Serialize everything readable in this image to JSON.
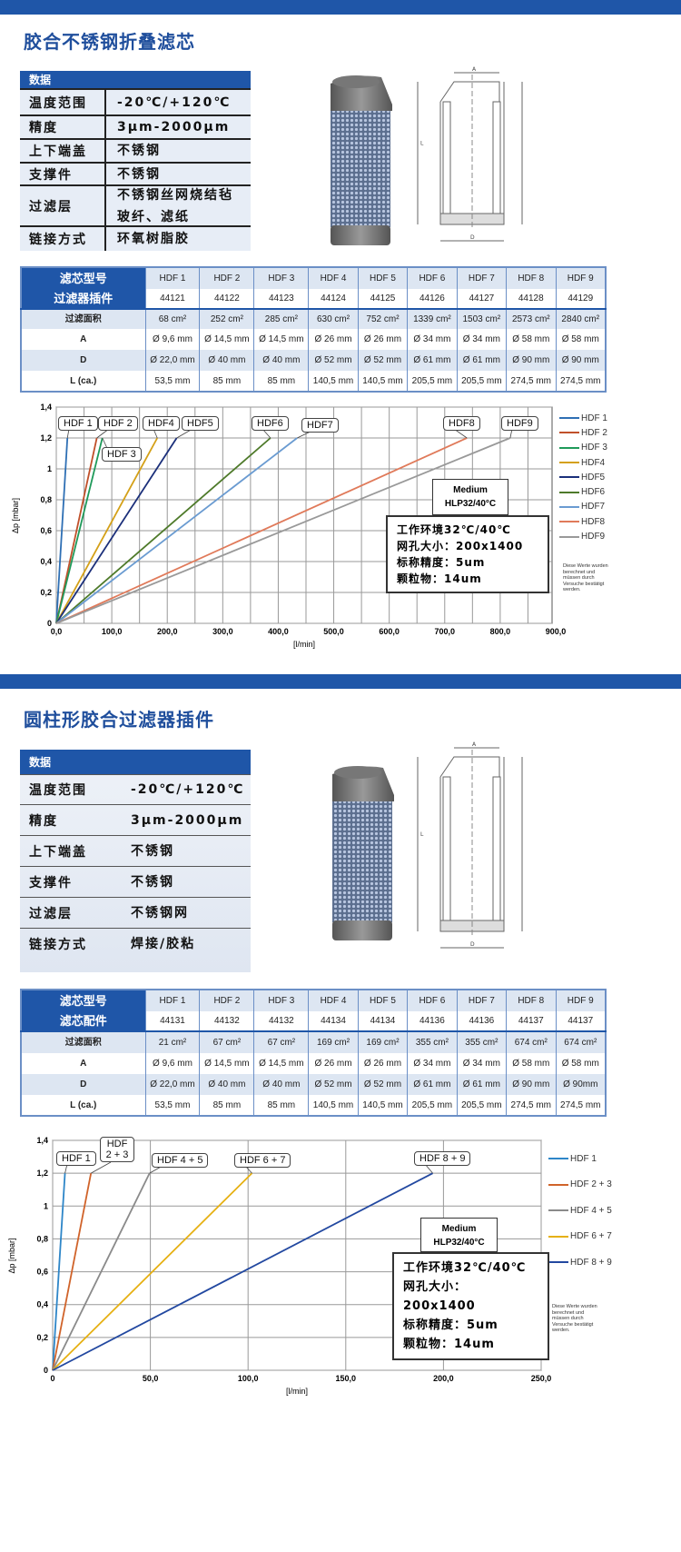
{
  "colors": {
    "brand": "#1f56a8"
  },
  "section1": {
    "title": "胶合不锈钢折叠滤芯",
    "spec": {
      "header": "数据",
      "rows": [
        {
          "k": "温度范围",
          "v": "-20℃/+120℃"
        },
        {
          "k": "精度",
          "v": "3µm-2000µm"
        },
        {
          "k": "上下端盖",
          "v": "不锈钢"
        },
        {
          "k": "支撑件",
          "v": "不锈钢"
        },
        {
          "k": "过滤层",
          "v": "不锈钢丝网烧结毡\n玻纤、滤纸"
        },
        {
          "k": "链接方式",
          "v": "环氧树脂胶"
        }
      ]
    },
    "drawing_labels": {
      "a": "A",
      "l": "L",
      "d": "D"
    },
    "table": {
      "rows": [
        {
          "label": "滤芯型号",
          "cells": [
            "HDF 1",
            "HDF 2",
            "HDF 3",
            "HDF 4",
            "HDF 5",
            "HDF 6",
            "HDF 7",
            "HDF 8",
            "HDF 9"
          ]
        },
        {
          "label": "过滤器插件",
          "cells": [
            "44121",
            "44122",
            "44123",
            "44124",
            "44125",
            "44126",
            "44127",
            "44128",
            "44129"
          ]
        },
        {
          "label": "过滤面积",
          "cells": [
            "68 cm²",
            "252 cm²",
            "285 cm²",
            "630 cm²",
            "752 cm²",
            "1339 cm²",
            "1503 cm²",
            "2573 cm²",
            "2840 cm²"
          ]
        },
        {
          "label": "A",
          "cells": [
            "Ø 9,6 mm",
            "Ø 14,5 mm",
            "Ø 14,5 mm",
            "Ø 26 mm",
            "Ø 26 mm",
            "Ø 34 mm",
            "Ø 34 mm",
            "Ø 58 mm",
            "Ø 58 mm"
          ]
        },
        {
          "label": "D",
          "cells": [
            "Ø 22,0 mm",
            "Ø 40 mm",
            "Ø 40 mm",
            "Ø 52 mm",
            "Ø 52 mm",
            "Ø 61 mm",
            "Ø 61 mm",
            "Ø 90 mm",
            "Ø 90 mm"
          ]
        },
        {
          "label": "L (ca.)",
          "cells": [
            "53,5 mm",
            "85 mm",
            "85 mm",
            "140,5 mm",
            "140,5 mm",
            "205,5 mm",
            "205,5 mm",
            "274,5 mm",
            "274,5 mm"
          ]
        }
      ]
    },
    "medium": {
      "line1": "Medium",
      "line2": "HLP32/40°C"
    },
    "info": [
      "工作环境32℃/40℃",
      "网孔大小：200x1400",
      "标称精度：5um",
      "颗粒物：14um"
    ],
    "note": "Diese Werte wurden berechnet und müssen durch Versuche bestätigt werden."
  },
  "section2": {
    "title": "圆柱形胶合过滤器插件",
    "spec": {
      "header": "数据",
      "rows": [
        {
          "k": "温度范围",
          "v": "-20℃/+120℃"
        },
        {
          "k": "精度",
          "v": "3µm-2000µm"
        },
        {
          "k": "上下端盖",
          "v": "不锈钢"
        },
        {
          "k": "支撑件",
          "v": "不锈钢"
        },
        {
          "k": "过滤层",
          "v": "不锈钢网"
        },
        {
          "k": "链接方式",
          "v": "焊接/胶粘"
        }
      ]
    },
    "drawing_labels": {
      "a": "A",
      "l": "L",
      "d": "D"
    },
    "table": {
      "rows": [
        {
          "label": "滤芯型号",
          "cells": [
            "HDF 1",
            "HDF 2",
            "HDF 3",
            "HDF 4",
            "HDF 5",
            "HDF 6",
            "HDF 7",
            "HDF 8",
            "HDF 9"
          ]
        },
        {
          "label": "滤芯配件",
          "cells": [
            "44131",
            "44132",
            "44132",
            "44134",
            "44134",
            "44136",
            "44136",
            "44137",
            "44137"
          ]
        },
        {
          "label": "过滤面积",
          "cells": [
            "21 cm²",
            "67 cm²",
            "67 cm²",
            "169 cm²",
            "169 cm²",
            "355 cm²",
            "355 cm²",
            "674 cm²",
            "674 cm²"
          ]
        },
        {
          "label": "A",
          "cells": [
            "Ø 9,6 mm",
            "Ø 14,5 mm",
            "Ø 14,5 mm",
            "Ø 26 mm",
            "Ø 26 mm",
            "Ø 34 mm",
            "Ø 34 mm",
            "Ø 58 mm",
            "Ø 58 mm"
          ]
        },
        {
          "label": "D",
          "cells": [
            "Ø 22,0 mm",
            "Ø 40 mm",
            "Ø 40 mm",
            "Ø 52 mm",
            "Ø 52 mm",
            "Ø 61 mm",
            "Ø 61 mm",
            "Ø 90 mm",
            "Ø 90mm"
          ]
        },
        {
          "label": "L (ca.)",
          "cells": [
            "53,5 mm",
            "85 mm",
            "85 mm",
            "140,5 mm",
            "140,5 mm",
            "205,5 mm",
            "205,5 mm",
            "274,5 mm",
            "274,5 mm"
          ]
        }
      ]
    },
    "medium": {
      "line1": "Medium",
      "line2": "HLP32/40°C"
    },
    "info": [
      "工作环境32℃/40℃",
      "网孔大小：200x1400",
      "标称精度：5um",
      "颗粒物：14um"
    ],
    "note": "Diese Werte wurden berechnet und müssen durch Versuche bestätigt werden."
  },
  "chart_data": [
    {
      "type": "line",
      "xlabel": "[l/min]",
      "ylabel": "Δp [mbar]",
      "xlim": [
        0,
        900
      ],
      "ylim": [
        0,
        1.4
      ],
      "xticks": [
        "0,0",
        "100,0",
        "200,0",
        "300,0",
        "400,0",
        "500,0",
        "600,0",
        "700,0",
        "800,0",
        "900,0"
      ],
      "yticks": [
        "0",
        "0,2",
        "0,4",
        "0,6",
        "0,8",
        "1",
        "1,2",
        "1,4"
      ],
      "grid": true,
      "legend": "right",
      "series": [
        {
          "name": "HDF 1",
          "callout": "HDF 1",
          "color": "#2e6fb4",
          "x": [
            0,
            20
          ],
          "y": [
            0,
            1.2
          ]
        },
        {
          "name": "HDF 2",
          "callout": "HDF 2",
          "color": "#c0502a",
          "x": [
            0,
            73
          ],
          "y": [
            0,
            1.2
          ]
        },
        {
          "name": "HDF 3",
          "callout": "HDF 3",
          "color": "#1f9a5a",
          "x": [
            0,
            83
          ],
          "y": [
            0,
            1.2
          ]
        },
        {
          "name": "HDF4",
          "callout": "HDF4",
          "color": "#d4a017",
          "x": [
            0,
            182
          ],
          "y": [
            0,
            1.2
          ]
        },
        {
          "name": "HDF5",
          "callout": "HDF5",
          "color": "#1b2f7a",
          "x": [
            0,
            217
          ],
          "y": [
            0,
            1.2
          ]
        },
        {
          "name": "HDF6",
          "callout": "HDF6",
          "color": "#4e7a2a",
          "x": [
            0,
            386
          ],
          "y": [
            0,
            1.2
          ]
        },
        {
          "name": "HDF7",
          "callout": "HDF7",
          "color": "#6a9bd1",
          "x": [
            0,
            434
          ],
          "y": [
            0,
            1.2
          ]
        },
        {
          "name": "HDF8",
          "callout": "HDF8",
          "color": "#e07a5a",
          "x": [
            0,
            740
          ],
          "y": [
            0,
            1.2
          ]
        },
        {
          "name": "HDF9",
          "callout": "HDF9",
          "color": "#999999",
          "x": [
            0,
            818
          ],
          "y": [
            0,
            1.2
          ]
        }
      ]
    },
    {
      "type": "line",
      "xlabel": "[l/min]",
      "ylabel": "Δp [mbar]",
      "xlim": [
        0,
        250
      ],
      "ylim": [
        0,
        1.4
      ],
      "xticks": [
        "0",
        "50,0",
        "100,0",
        "150,0",
        "200,0",
        "250,0"
      ],
      "yticks": [
        "0",
        "0,2",
        "0,4",
        "0,6",
        "0,8",
        "1",
        "1,2",
        "1,4"
      ],
      "grid": true,
      "legend": "right",
      "series": [
        {
          "name": "HDF 1",
          "callout": "HDF 1",
          "color": "#2e86c8",
          "x": [
            0,
            6.3
          ],
          "y": [
            0,
            1.2
          ]
        },
        {
          "name": "HDF 2 + 3",
          "callout": "HDF 2 + 3",
          "color": "#d0632a",
          "x": [
            0,
            19.6
          ],
          "y": [
            0,
            1.2
          ]
        },
        {
          "name": "HDF 4 + 5",
          "callout": "HDF 4 + 5",
          "color": "#8a8a8a",
          "x": [
            0,
            49.6
          ],
          "y": [
            0,
            1.2
          ]
        },
        {
          "name": "HDF 6 + 7",
          "callout": "HDF 6 + 7",
          "color": "#e6b012",
          "x": [
            0,
            102
          ],
          "y": [
            0,
            1.2
          ]
        },
        {
          "name": "HDF 8 + 9",
          "callout": "HDF 8 + 9",
          "color": "#2248a0",
          "x": [
            0,
            194.5
          ],
          "y": [
            0,
            1.2
          ]
        }
      ]
    }
  ]
}
